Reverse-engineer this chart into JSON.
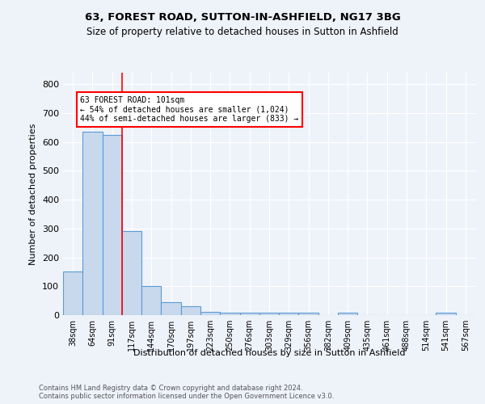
{
  "title1": "63, FOREST ROAD, SUTTON-IN-ASHFIELD, NG17 3BG",
  "title2": "Size of property relative to detached houses in Sutton in Ashfield",
  "xlabel": "Distribution of detached houses by size in Sutton in Ashfield",
  "ylabel": "Number of detached properties",
  "footnote": "Contains HM Land Registry data © Crown copyright and database right 2024.\nContains public sector information licensed under the Open Government Licence v3.0.",
  "bin_labels": [
    "38sqm",
    "64sqm",
    "91sqm",
    "117sqm",
    "144sqm",
    "170sqm",
    "197sqm",
    "223sqm",
    "250sqm",
    "276sqm",
    "303sqm",
    "329sqm",
    "356sqm",
    "382sqm",
    "409sqm",
    "435sqm",
    "461sqm",
    "488sqm",
    "514sqm",
    "541sqm",
    "567sqm"
  ],
  "bar_values": [
    150,
    635,
    625,
    290,
    100,
    45,
    30,
    12,
    8,
    8,
    8,
    8,
    8,
    0,
    8,
    0,
    0,
    0,
    0,
    8,
    0
  ],
  "bar_color": "#c8d9ed",
  "bar_edge_color": "#5b9bd5",
  "ylim": [
    0,
    840
  ],
  "yticks": [
    0,
    100,
    200,
    300,
    400,
    500,
    600,
    700,
    800
  ],
  "red_line_x": 2.5,
  "annotation_text": "63 FOREST ROAD: 101sqm\n← 54% of detached houses are smaller (1,024)\n44% of semi-detached houses are larger (833) →",
  "background_color": "#eef2f9"
}
